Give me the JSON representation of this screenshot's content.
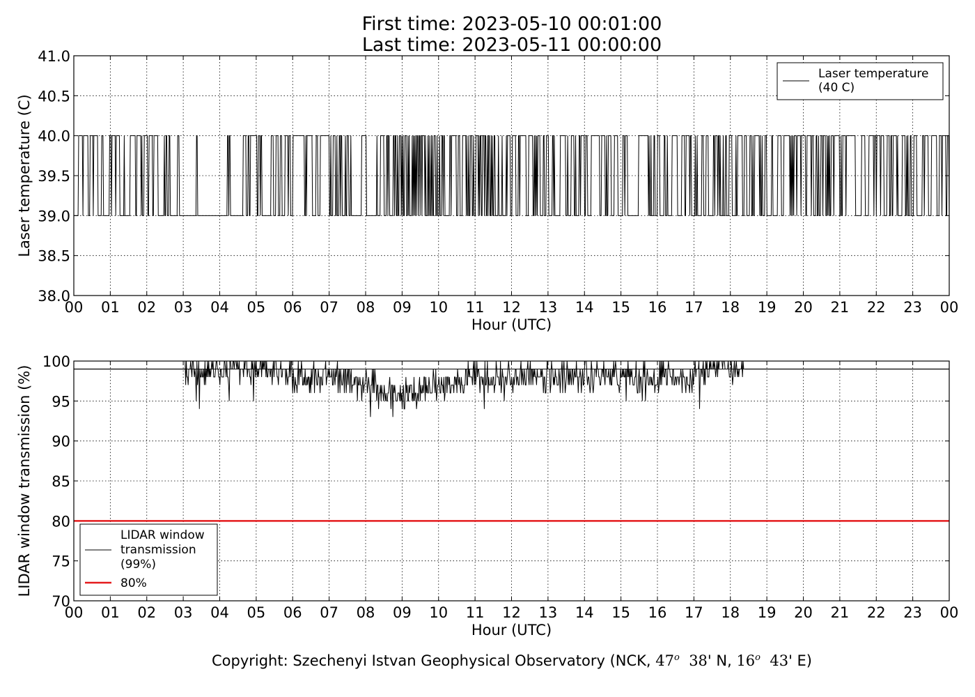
{
  "title": {
    "line1": "First time: 2023-05-10 00:01:00",
    "line2": "Last time: 2023-05-11 00:00:00"
  },
  "copyright": {
    "prefix": "Copyright: Szechenyi Istvan Geophysical Observatory (NCK, ",
    "lat_deg": "47",
    "deg_mark": "o",
    "lat_min": "38",
    "lat_suffix": "' N, ",
    "lon_deg": "16",
    "lon_min": "43",
    "lon_suffix": "' E)"
  },
  "colors": {
    "series": "#000000",
    "threshold": "#e41a1c",
    "grid": "#b0b0b0"
  },
  "chart_data": [
    {
      "type": "line",
      "ylabel": "Laser temperature (C)",
      "xlabel": "Hour (UTC)",
      "xlim": [
        0,
        24
      ],
      "ylim": [
        38.0,
        41.0
      ],
      "x_ticklabels": [
        "00",
        "01",
        "02",
        "03",
        "04",
        "05",
        "06",
        "07",
        "08",
        "09",
        "10",
        "11",
        "12",
        "13",
        "14",
        "15",
        "16",
        "17",
        "18",
        "19",
        "20",
        "21",
        "22",
        "23",
        "00"
      ],
      "y_ticklabels": [
        "38.0",
        "38.5",
        "39.0",
        "39.5",
        "40.0",
        "40.5",
        "41.0"
      ],
      "grid": true,
      "legend_placement": "top-right",
      "legend": [
        {
          "label_line1": "Laser temperature",
          "label_line2": "(40 C)",
          "color": "#000000"
        }
      ],
      "series": [
        {
          "name": "Laser temperature (40 C)",
          "levels": [
            39.0,
            40.0
          ],
          "note_values": "minute samples alternating between the two levels",
          "x_start": 0.0167,
          "x_end": 24.0,
          "steady_40_intervals": [
            [
              6.0,
              6.3
            ]
          ],
          "steady_39_intervals": [
            [
              2.95,
              3.25
            ],
            [
              3.45,
              4.2
            ],
            [
              4.38,
              4.6
            ],
            [
              15.2,
              15.35
            ]
          ]
        }
      ]
    },
    {
      "type": "line",
      "ylabel": "LIDAR window transmission (%)",
      "xlabel": "Hour (UTC)",
      "xlim": [
        0,
        24
      ],
      "ylim": [
        70,
        100
      ],
      "x_ticklabels": [
        "00",
        "01",
        "02",
        "03",
        "04",
        "05",
        "06",
        "07",
        "08",
        "09",
        "10",
        "11",
        "12",
        "13",
        "14",
        "15",
        "16",
        "17",
        "18",
        "19",
        "20",
        "21",
        "22",
        "23",
        "00"
      ],
      "y_ticklabels": [
        "70",
        "75",
        "80",
        "85",
        "90",
        "95",
        "100"
      ],
      "grid": true,
      "legend_placement": "lower-left",
      "legend": [
        {
          "label_line1": "LIDAR window",
          "label_line2": "transmission",
          "label_line3": "(99%)",
          "color": "#000000"
        },
        {
          "label_line1": "80%",
          "color": "#e41a1c"
        }
      ],
      "series": [
        {
          "name": "LIDAR window transmission (99%)",
          "baseline": 99,
          "profile": [
            [
              0.0,
              99
            ],
            [
              3.05,
              99
            ],
            [
              3.5,
              98.5
            ],
            [
              5.0,
              98.5
            ],
            [
              6.0,
              98.5
            ],
            [
              7.0,
              98.3
            ],
            [
              7.8,
              97.2
            ],
            [
              8.3,
              96.5
            ],
            [
              8.8,
              96.0
            ],
            [
              9.3,
              96.2
            ],
            [
              9.8,
              96.8
            ],
            [
              10.3,
              97.2
            ],
            [
              10.8,
              97.5
            ],
            [
              11.3,
              98.0
            ],
            [
              12.0,
              98.2
            ],
            [
              13.0,
              98.0
            ],
            [
              13.5,
              97.7
            ],
            [
              14.0,
              97.8
            ],
            [
              14.5,
              98.2
            ],
            [
              15.0,
              98.3
            ],
            [
              16.0,
              98.4
            ],
            [
              17.0,
              98.5
            ],
            [
              18.35,
              98.6
            ],
            [
              18.4,
              99
            ],
            [
              24.0,
              99
            ]
          ]
        },
        {
          "name": "80%",
          "values": [
            80,
            80
          ],
          "x": [
            0,
            24
          ]
        }
      ]
    }
  ]
}
